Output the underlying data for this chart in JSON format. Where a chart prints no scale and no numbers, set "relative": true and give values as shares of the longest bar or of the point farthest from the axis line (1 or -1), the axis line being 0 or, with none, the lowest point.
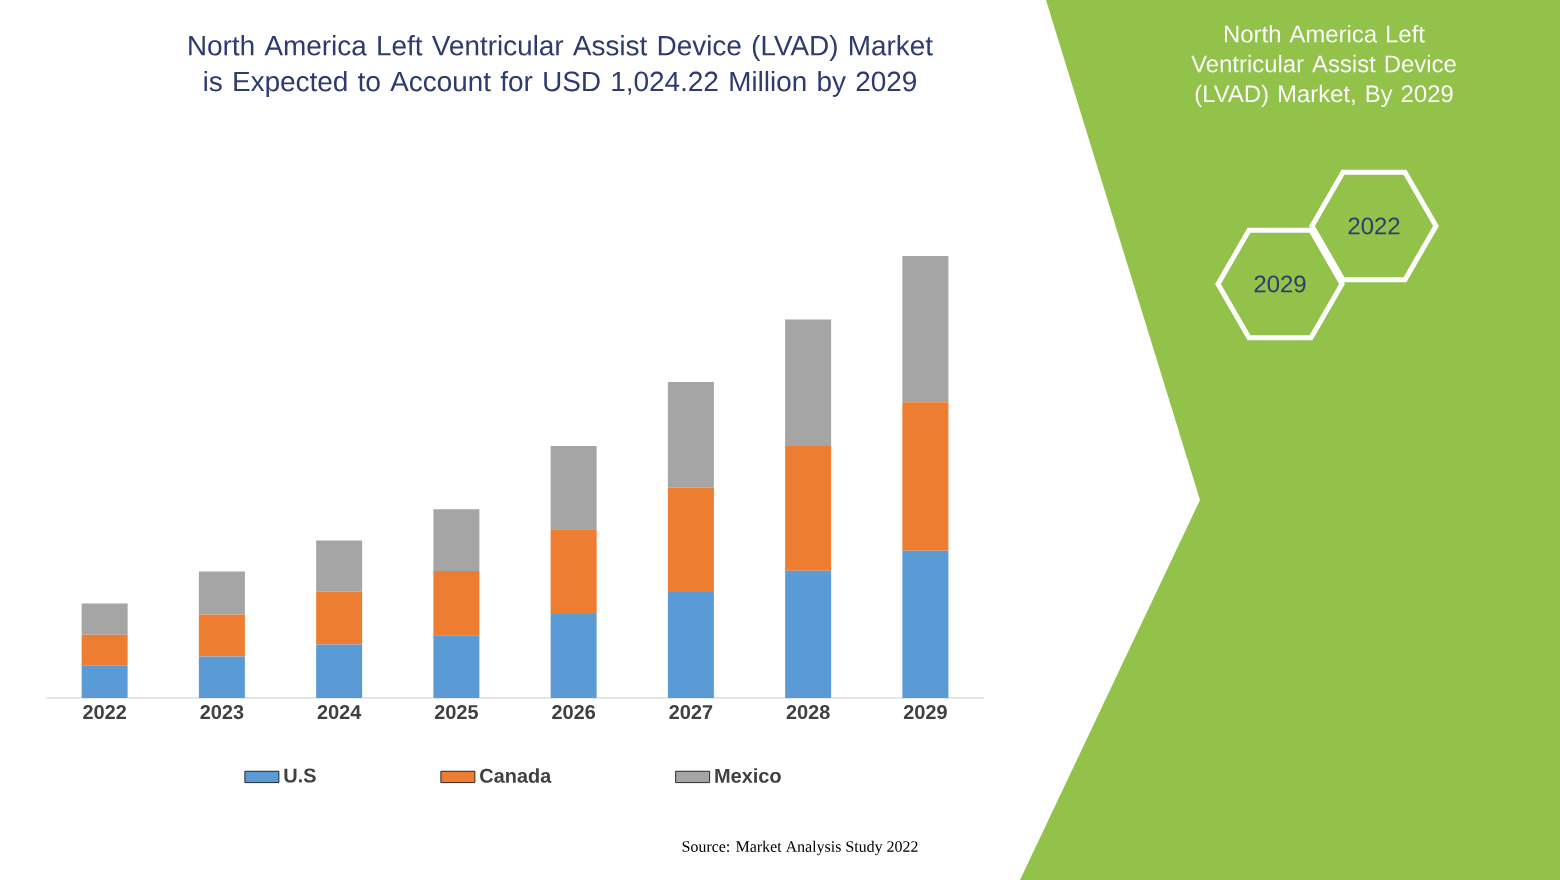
{
  "chart_data": {
    "type": "bar",
    "title": "North America Left Ventricular Assist Device (LVAD) Market is Expected to Account for USD 1,024.22 Million by 2029",
    "categories": [
      "2022",
      "2023",
      "2024",
      "2025",
      "2026",
      "2027",
      "2028",
      "2029"
    ],
    "stacked": true,
    "relative": true,
    "legend": "bottom",
    "series": [
      {
        "name": "U.S",
        "color": "#5b9bd5",
        "values": [
          0.073,
          0.094,
          0.121,
          0.142,
          0.19,
          0.24,
          0.288,
          0.333
        ]
      },
      {
        "name": "Canada",
        "color": "#ed7d31",
        "values": [
          0.07,
          0.095,
          0.12,
          0.145,
          0.192,
          0.236,
          0.282,
          0.336
        ]
      },
      {
        "name": "Mexico",
        "color": "#a5a5a5",
        "values": [
          0.071,
          0.097,
          0.115,
          0.14,
          0.188,
          0.239,
          0.286,
          0.331
        ]
      }
    ],
    "annotations": [
      "North America Left Ventricular Assist Device (LVAD) Market, By 2029",
      "2022",
      "2029",
      "Source: Market Analysis Study 2022"
    ]
  }
}
